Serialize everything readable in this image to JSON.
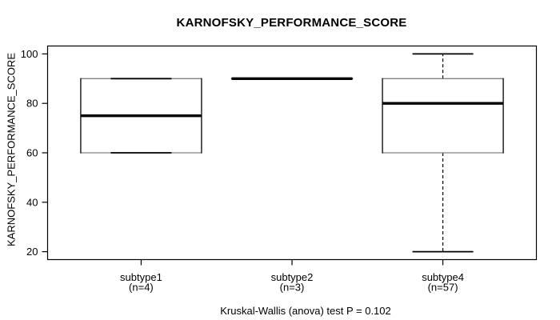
{
  "chart_data": {
    "type": "boxplot",
    "title": "KARNOFSKY_PERFORMANCE_SCORE",
    "ylabel": "KARNOFSKY_PERFORMANCE_SCORE",
    "footer": "Kruskal-Wallis (anova) test P = 0.102",
    "ylim": [
      16.8,
      103.2
    ],
    "yticks": [
      20,
      40,
      60,
      80,
      100
    ],
    "grid": false,
    "legend": "none",
    "groups": [
      {
        "label": "subtype1",
        "sublabel": "(n=4)",
        "n": 4,
        "stats": {
          "whisker_low": 60,
          "q1": 60,
          "median": 75,
          "q3": 90,
          "whisker_high": 90
        }
      },
      {
        "label": "subtype2",
        "sublabel": "(n=3)",
        "n": 3,
        "stats": {
          "whisker_low": 90,
          "q1": 90,
          "median": 90,
          "q3": 90,
          "whisker_high": 90
        }
      },
      {
        "label": "subtype4",
        "sublabel": "(n=57)",
        "n": 57,
        "stats": {
          "whisker_low": 20,
          "q1": 60,
          "median": 80,
          "q3": 90,
          "whisker_high": 100
        }
      }
    ],
    "colors": {
      "line": "#000000",
      "box_fill": "#ffffff",
      "box_edge_horizontal": "#828282",
      "background": "#ffffff"
    }
  }
}
